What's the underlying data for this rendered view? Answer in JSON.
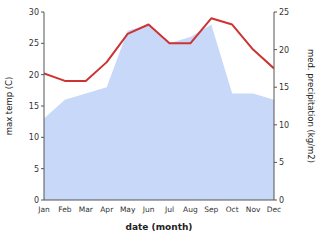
{
  "chart_data": {
    "type": "line",
    "xlabel": "date (month)",
    "ylabel": "max temp (C)",
    "y2label": "med. precipitation (kg/m2)",
    "categories": [
      "Jan",
      "Feb",
      "Mar",
      "Apr",
      "May",
      "Jun",
      "Jul",
      "Aug",
      "Sep",
      "Oct",
      "Nov",
      "Dec"
    ],
    "series": [
      {
        "type": "area",
        "color": "#c8d8f8",
        "values": [
          13,
          16,
          17,
          18,
          27,
          28,
          25,
          26,
          28,
          17,
          17,
          16
        ]
      },
      {
        "type": "line",
        "color": "#cc3333",
        "values": [
          20.2,
          19.0,
          19.0,
          22.0,
          26.5,
          28.0,
          25.0,
          25.0,
          29.0,
          28.0,
          24.0,
          21.0
        ]
      }
    ],
    "ylim": [
      0,
      30
    ],
    "yticks": [
      0,
      5,
      10,
      15,
      20,
      25,
      30
    ],
    "y2lim": [
      0,
      25
    ],
    "y2ticks": [
      0,
      5,
      10,
      15,
      20,
      25
    ]
  }
}
